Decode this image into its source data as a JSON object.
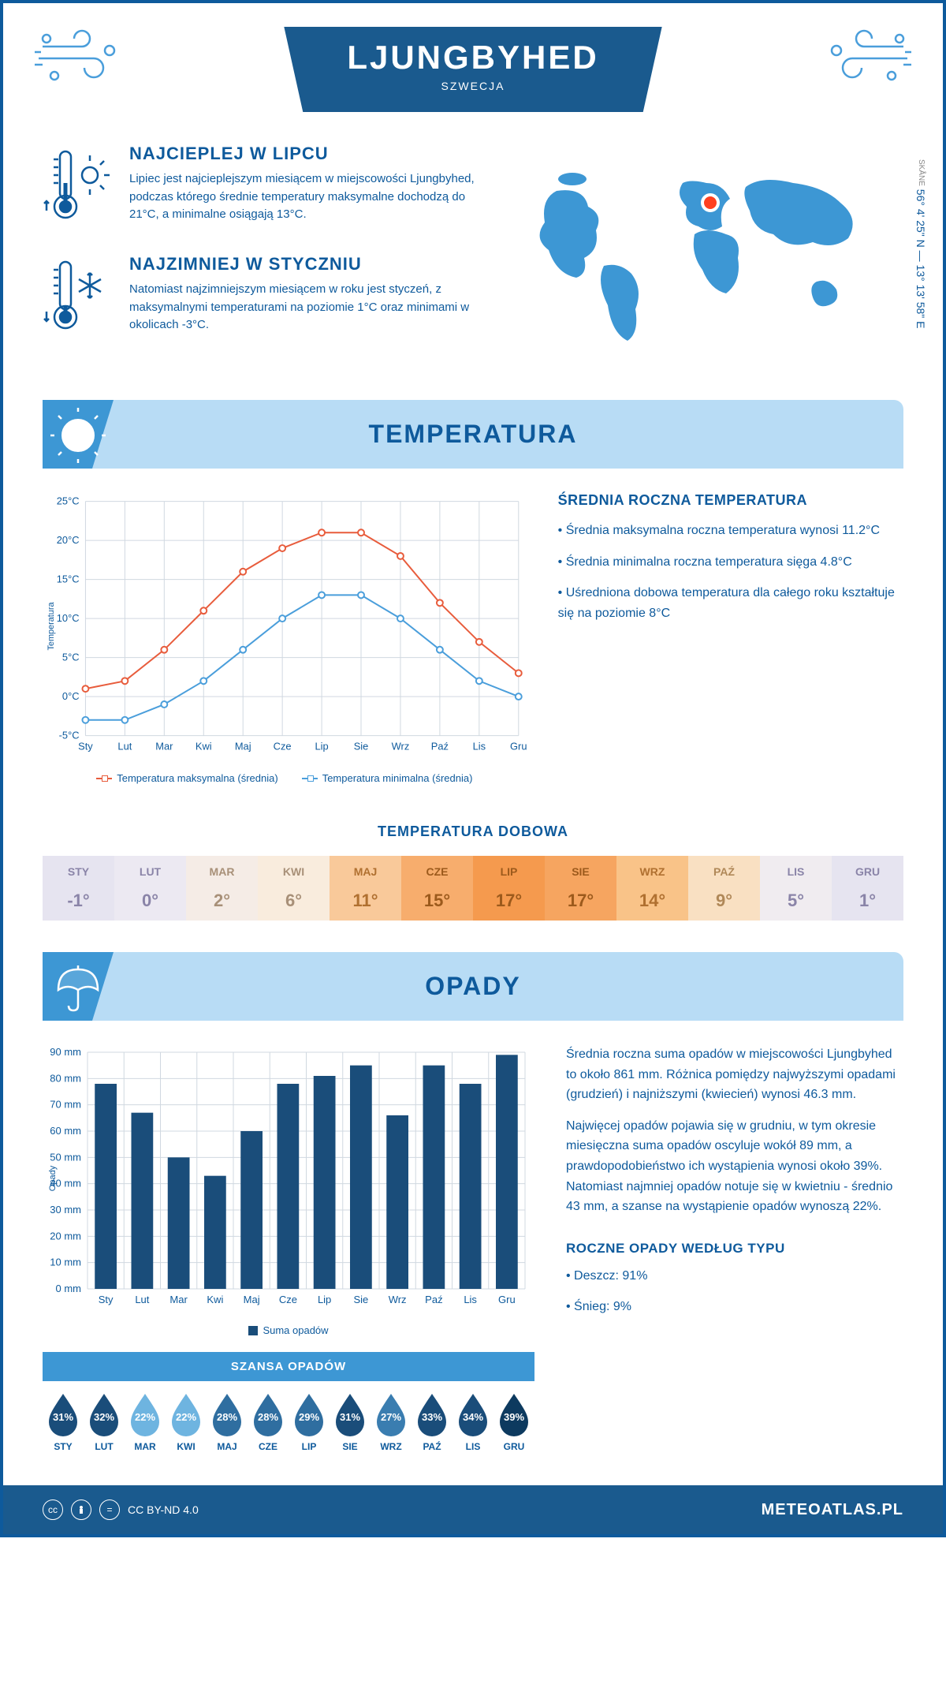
{
  "header": {
    "title": "LJUNGBYHED",
    "subtitle": "SZWECJA"
  },
  "coords": {
    "region": "SKÅNE",
    "text": "56° 4' 25\" N — 13° 13' 58\" E"
  },
  "intro": {
    "hot": {
      "title": "NAJCIEPLEJ W LIPCU",
      "text": "Lipiec jest najcieplejszym miesiącem w miejscowości Ljungbyhed, podczas którego średnie temperatury maksymalne dochodzą do 21°C, a minimalne osiągają 13°C."
    },
    "cold": {
      "title": "NAJZIMNIEJ W STYCZNIU",
      "text": "Natomiast najzimniejszym miesiącem w roku jest styczeń, z maksymalnymi temperaturami na poziomie 1°C oraz minimami w okolicach -3°C."
    }
  },
  "temp_section": {
    "banner": "TEMPERATURA",
    "info_title": "ŚREDNIA ROCZNA TEMPERATURA",
    "bullets": [
      "• Średnia maksymalna roczna temperatura wynosi 11.2°C",
      "• Średnia minimalna roczna temperatura sięga 4.8°C",
      "• Uśredniona dobowa temperatura dla całego roku kształtuje się na poziomie 8°C"
    ],
    "chart": {
      "type": "line",
      "months": [
        "Sty",
        "Lut",
        "Mar",
        "Kwi",
        "Maj",
        "Cze",
        "Lip",
        "Sie",
        "Wrz",
        "Paź",
        "Lis",
        "Gru"
      ],
      "ylabel": "Temperatura",
      "ylim": [
        -5,
        25
      ],
      "ytick_step": 5,
      "ytick_suffix": "°C",
      "series": [
        {
          "name": "Temperatura maksymalna (średnia)",
          "color": "#e85c3c",
          "values": [
            1,
            2,
            6,
            11,
            16,
            19,
            21,
            21,
            18,
            12,
            7,
            3
          ]
        },
        {
          "name": "Temperatura minimalna (średnia)",
          "color": "#4a9edb",
          "values": [
            -3,
            -3,
            -1,
            2,
            6,
            10,
            13,
            13,
            10,
            6,
            2,
            0
          ]
        }
      ],
      "grid_color": "#d0d8e0",
      "background": "#ffffff"
    },
    "daily_title": "TEMPERATURA DOBOWA",
    "daily": {
      "months": [
        "STY",
        "LUT",
        "MAR",
        "KWI",
        "MAJ",
        "CZE",
        "LIP",
        "SIE",
        "WRZ",
        "PAŹ",
        "LIS",
        "GRU"
      ],
      "values": [
        "-1°",
        "0°",
        "2°",
        "6°",
        "11°",
        "15°",
        "17°",
        "17°",
        "14°",
        "9°",
        "5°",
        "1°"
      ],
      "bg_colors": [
        "#e6e4f0",
        "#ece9f2",
        "#f5ece6",
        "#f9ecdd",
        "#f9c99a",
        "#f7ad6d",
        "#f59a4e",
        "#f6a560",
        "#f9c388",
        "#f9e0c2",
        "#f0ecf0",
        "#e6e4f0"
      ],
      "text_colors": [
        "#8a84a8",
        "#8a84a8",
        "#a89078",
        "#a89078",
        "#b07030",
        "#9c5a1c",
        "#9c5a1c",
        "#9c5a1c",
        "#b07030",
        "#b08858",
        "#8a84a8",
        "#8a84a8"
      ]
    }
  },
  "precip_section": {
    "banner": "OPADY",
    "chart": {
      "type": "bar",
      "months": [
        "Sty",
        "Lut",
        "Mar",
        "Kwi",
        "Maj",
        "Cze",
        "Lip",
        "Sie",
        "Wrz",
        "Paź",
        "Lis",
        "Gru"
      ],
      "ylabel": "Opady",
      "ylim": [
        0,
        90
      ],
      "ytick_step": 10,
      "ytick_suffix": " mm",
      "bar_color": "#1a4d7a",
      "values": [
        78,
        67,
        50,
        43,
        60,
        78,
        81,
        85,
        66,
        85,
        78,
        89
      ],
      "legend": "Suma opadów",
      "grid_color": "#d0d8e0"
    },
    "text1": "Średnia roczna suma opadów w miejscowości Ljungbyhed to około 861 mm. Różnica pomiędzy najwyższymi opadami (grudzień) i najniższymi (kwiecień) wynosi 46.3 mm.",
    "text2": "Najwięcej opadów pojawia się w grudniu, w tym okresie miesięczna suma opadów oscyluje wokół 89 mm, a prawdopodobieństwo ich wystąpienia wynosi około 39%. Natomiast najmniej opadów notuje się w kwietniu - średnio 43 mm, a szanse na wystąpienie opadów wynoszą 22%.",
    "chance": {
      "title": "SZANSA OPADÓW",
      "months": [
        "STY",
        "LUT",
        "MAR",
        "KWI",
        "MAJ",
        "CZE",
        "LIP",
        "SIE",
        "WRZ",
        "PAŹ",
        "LIS",
        "GRU"
      ],
      "values": [
        "31%",
        "32%",
        "22%",
        "22%",
        "28%",
        "28%",
        "29%",
        "31%",
        "27%",
        "33%",
        "34%",
        "39%"
      ],
      "colors": [
        "#1a4d7a",
        "#1a4d7a",
        "#6eb4e0",
        "#6eb4e0",
        "#2f6ea0",
        "#2f6ea0",
        "#2f6ea0",
        "#1a4d7a",
        "#3a7db0",
        "#1a4d7a",
        "#1a4d7a",
        "#0d3a5f"
      ]
    },
    "type": {
      "title": "ROCZNE OPADY WEDŁUG TYPU",
      "items": [
        "• Deszcz: 91%",
        "• Śnieg: 9%"
      ]
    }
  },
  "footer": {
    "license": "CC BY-ND 4.0",
    "site": "METEOATLAS.PL"
  },
  "colors": {
    "primary": "#0e5a9c",
    "banner_bg": "#b8dcf5",
    "corner": "#3d97d4",
    "wind_deco": "#4a9edb"
  }
}
